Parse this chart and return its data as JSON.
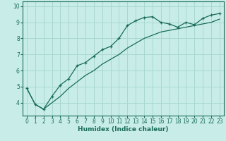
{
  "xlabel": "Humidex (Indice chaleur)",
  "background_color": "#c8ede8",
  "line_color": "#1a6b5a",
  "grid_color": "#a8d8d0",
  "x_data": [
    0,
    1,
    2,
    3,
    4,
    5,
    6,
    7,
    8,
    9,
    10,
    11,
    12,
    13,
    14,
    15,
    16,
    17,
    18,
    19,
    20,
    21,
    22,
    23
  ],
  "y_data1": [
    4.9,
    3.9,
    3.6,
    4.4,
    5.1,
    5.5,
    6.3,
    6.5,
    6.9,
    7.3,
    7.5,
    8.0,
    8.8,
    9.1,
    9.3,
    9.35,
    9.0,
    8.9,
    8.7,
    9.0,
    8.85,
    9.25,
    9.45,
    9.55
  ],
  "y_data2": [
    4.9,
    3.9,
    3.6,
    4.0,
    4.4,
    4.9,
    5.3,
    5.7,
    6.0,
    6.4,
    6.7,
    7.0,
    7.4,
    7.7,
    8.0,
    8.2,
    8.4,
    8.5,
    8.6,
    8.7,
    8.8,
    8.9,
    9.0,
    9.2
  ],
  "xlim": [
    -0.5,
    23.5
  ],
  "ylim": [
    3.2,
    10.3
  ],
  "yticks": [
    4,
    5,
    6,
    7,
    8,
    9,
    10
  ],
  "xticks": [
    0,
    1,
    2,
    3,
    4,
    5,
    6,
    7,
    8,
    9,
    10,
    11,
    12,
    13,
    14,
    15,
    16,
    17,
    18,
    19,
    20,
    21,
    22,
    23
  ],
  "tick_fontsize": 5.5,
  "xlabel_fontsize": 6.5
}
